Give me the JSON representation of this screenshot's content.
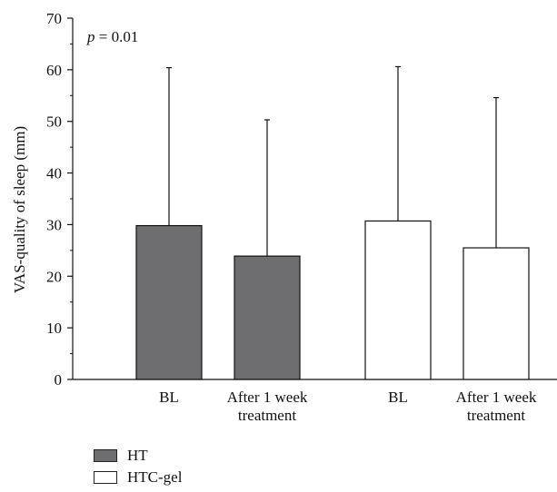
{
  "chart_data": {
    "type": "bar",
    "ylabel": "VAS-quality of sleep (mm)",
    "ylim": [
      0,
      70
    ],
    "yticks": [
      0,
      10,
      20,
      30,
      40,
      50,
      60,
      70
    ],
    "annotation": {
      "italic": "p",
      "rest": " = 0.01"
    },
    "categories": [
      "BL",
      "After 1 week treatment",
      "BL",
      "After 1 week treatment"
    ],
    "category_lines": [
      [
        "BL"
      ],
      [
        "After 1 week",
        "treatment"
      ],
      [
        "BL"
      ],
      [
        "After 1 week",
        "treatment"
      ]
    ],
    "bars": [
      {
        "category": "BL",
        "series": "HT",
        "value": 29.8,
        "error_upper": 60.4
      },
      {
        "category": "After 1 week treatment",
        "series": "HT",
        "value": 23.9,
        "error_upper": 50.3
      },
      {
        "category": "BL",
        "series": "HTC-gel",
        "value": 30.7,
        "error_upper": 60.6
      },
      {
        "category": "After 1 week treatment",
        "series": "HTC-gel",
        "value": 25.5,
        "error_upper": 54.6
      }
    ],
    "legend": [
      {
        "name": "HT",
        "color": "#6e6e70"
      },
      {
        "name": "HTC-gel",
        "color": "#ffffff"
      }
    ],
    "legend_position": "bottom-left",
    "grid": false
  }
}
